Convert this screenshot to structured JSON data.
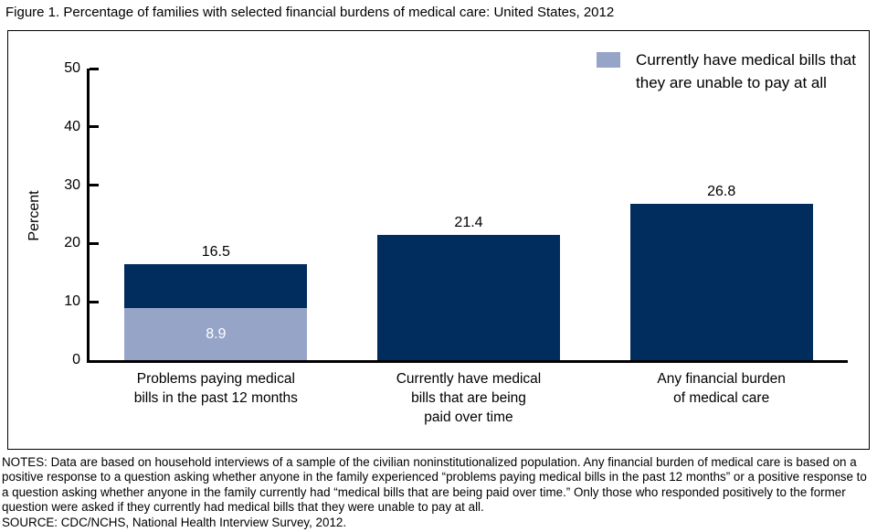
{
  "title": "Figure 1. Percentage of families with selected financial burdens of medical care: United States, 2012",
  "notes": "NOTES: Data are based on household interviews of a sample of the civilian noninstitutionalized population. Any financial burden of medical care is based on a positive response to a question asking whether anyone in the family experienced “problems paying medical bills in the past 12 months” or a positive response to a question asking whether anyone in the family currently had “medical bills that are being paid over time.” Only those who responded positively to the former question were asked if they currently had medical bills that they were unable to pay at all.",
  "source": "SOURCE: CDC/NCHS, National Health Interview Survey, 2012.",
  "chart_data": {
    "type": "bar",
    "title": "Percentage of families with selected financial burdens of medical care: United States, 2012",
    "xlabel": "",
    "ylabel": "Percent",
    "ylim": [
      0,
      50
    ],
    "yticks": [
      0,
      10,
      20,
      30,
      40,
      50
    ],
    "grid": false,
    "legend_position": "top-right",
    "legend_label": "Currently have medical bills that\nthey are unable to pay at all",
    "categories": [
      "Problems paying medical\nbills in the past 12 months",
      "Currently have medical\nbills that are being\npaid over time",
      "Any financial burden\nof medical care"
    ],
    "values": [
      16.5,
      21.4,
      26.8
    ],
    "value_labels": [
      "16.5",
      "21.4",
      "26.8"
    ],
    "overlay_name": "Currently have medical bills that they are unable to pay at all",
    "overlay_values": [
      8.9,
      null,
      null
    ],
    "overlay_labels": [
      "8.9",
      null,
      null
    ],
    "colors": {
      "bar": "#002d5e",
      "overlay": "#96a4c8",
      "axis": "#000000",
      "value_label": "#000000",
      "overlay_label": "#ffffff"
    }
  }
}
